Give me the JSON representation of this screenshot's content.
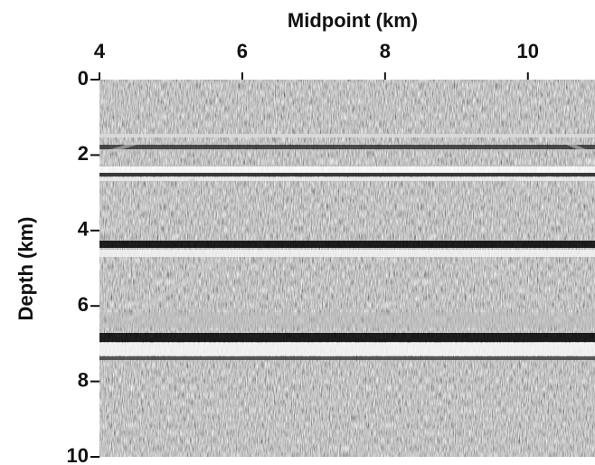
{
  "chart_data": {
    "type": "image",
    "x_label": "Midpoint (km)",
    "y_label": "Depth (km)",
    "xlim": [
      4,
      10.94
    ],
    "xticks": [
      4,
      6,
      8,
      10
    ],
    "ylim": [
      0,
      10
    ],
    "yticks": [
      0,
      2,
      4,
      6,
      8,
      10
    ]
  }
}
